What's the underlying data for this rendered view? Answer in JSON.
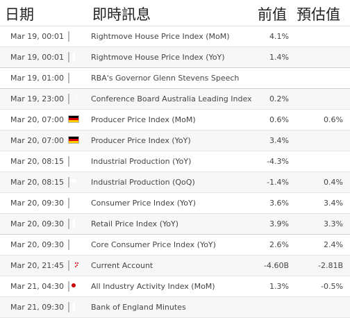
{
  "header": {
    "date": "日期",
    "event": "即時訊息",
    "previous": "前值",
    "forecast": "預估值"
  },
  "rows": [
    {
      "date": "Mar 19, 00:01",
      "flag": "uk-flag-icon",
      "event": "Rightmove House Price Index (MoM)",
      "previous": "4.1%",
      "forecast": ""
    },
    {
      "date": "Mar 19, 00:01",
      "flag": "uk-flag-icon",
      "event": "Rightmove House Price Index (YoY)",
      "previous": "1.4%",
      "forecast": ""
    },
    {
      "date": "Mar 19, 01:00",
      "flag": "australia-flag-icon",
      "event": "RBA's Governor Glenn Stevens Speech",
      "previous": "",
      "forecast": ""
    },
    {
      "date": "Mar 19, 23:00",
      "flag": "australia-flag-icon",
      "event": "Conference Board Australia Leading Index",
      "previous": "0.2%",
      "forecast": ""
    },
    {
      "date": "Mar 20, 07:00",
      "flag": "germany-flag-icon",
      "event": "Producer Price Index (MoM)",
      "previous": "0.6%",
      "forecast": "0.6%"
    },
    {
      "date": "Mar 20, 07:00",
      "flag": "germany-flag-icon",
      "event": "Producer Price Index (YoY)",
      "previous": "3.4%",
      "forecast": ""
    },
    {
      "date": "Mar 20, 08:15",
      "flag": "switzerland-flag-icon",
      "event": "Industrial Production (YoY)",
      "previous": "-4.3%",
      "forecast": ""
    },
    {
      "date": "Mar 20, 08:15",
      "flag": "switzerland-flag-icon",
      "event": "Industrial Production (QoQ)",
      "previous": "-1.4%",
      "forecast": "0.4%"
    },
    {
      "date": "Mar 20, 09:30",
      "flag": "uk-flag-icon",
      "event": "Consumer Price Index (YoY)",
      "previous": "3.6%",
      "forecast": "3.4%"
    },
    {
      "date": "Mar 20, 09:30",
      "flag": "uk-flag-icon",
      "event": "Retail Price Index (YoY)",
      "previous": "3.9%",
      "forecast": "3.3%"
    },
    {
      "date": "Mar 20, 09:30",
      "flag": "uk-flag-icon",
      "event": "Core Consumer Price Index (YoY)",
      "previous": "2.6%",
      "forecast": "2.4%"
    },
    {
      "date": "Mar 20, 21:45",
      "flag": "new-zealand-flag-icon",
      "event": "Current Account",
      "previous": "-4.60B",
      "forecast": "-2.81B"
    },
    {
      "date": "Mar 21, 04:30",
      "flag": "japan-flag-icon",
      "event": "All Industry Activity Index (MoM)",
      "previous": "1.3%",
      "forecast": "-0.5%"
    },
    {
      "date": "Mar 21, 09:30",
      "flag": "uk-flag-icon",
      "event": "Bank of England Minutes",
      "previous": "",
      "forecast": ""
    }
  ]
}
